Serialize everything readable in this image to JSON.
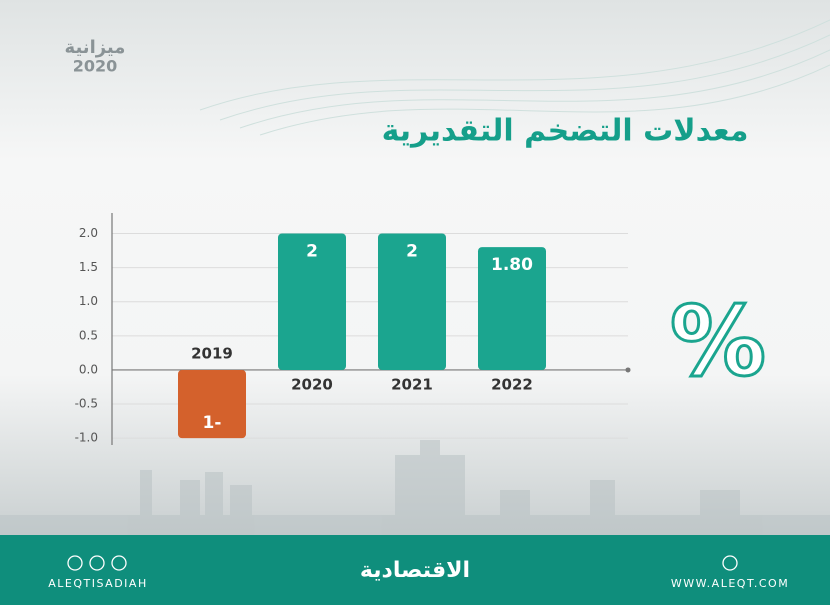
{
  "header": {
    "logo_title": "ميزانية",
    "logo_year": "2020"
  },
  "chart_data": {
    "type": "bar",
    "title": "معدلات التضخم التقديرية",
    "unit_symbol": "%",
    "categories": [
      "2019",
      "2020",
      "2021",
      "2022"
    ],
    "values": [
      -1,
      2,
      2,
      1.8
    ],
    "value_labels": [
      "1-",
      "2",
      "2",
      "1.80"
    ],
    "colors": [
      "#d4612c",
      "#1ba58f",
      "#1ba58f",
      "#1ba58f"
    ],
    "ylim": [
      -1.1,
      2.3
    ],
    "yticks": [
      {
        "value": -1,
        "label": "-1.0"
      },
      -0.5,
      {
        "value": 0,
        "label": "0.0"
      },
      0.5,
      {
        "value": 1,
        "label": "1.0"
      },
      1.5,
      {
        "value": 2,
        "label": "2.0"
      }
    ],
    "grid": true
  },
  "footer": {
    "left": "ALEQTISADIAH",
    "center": "الاقتصادية",
    "right": "WWW.ALEQT.COM"
  }
}
